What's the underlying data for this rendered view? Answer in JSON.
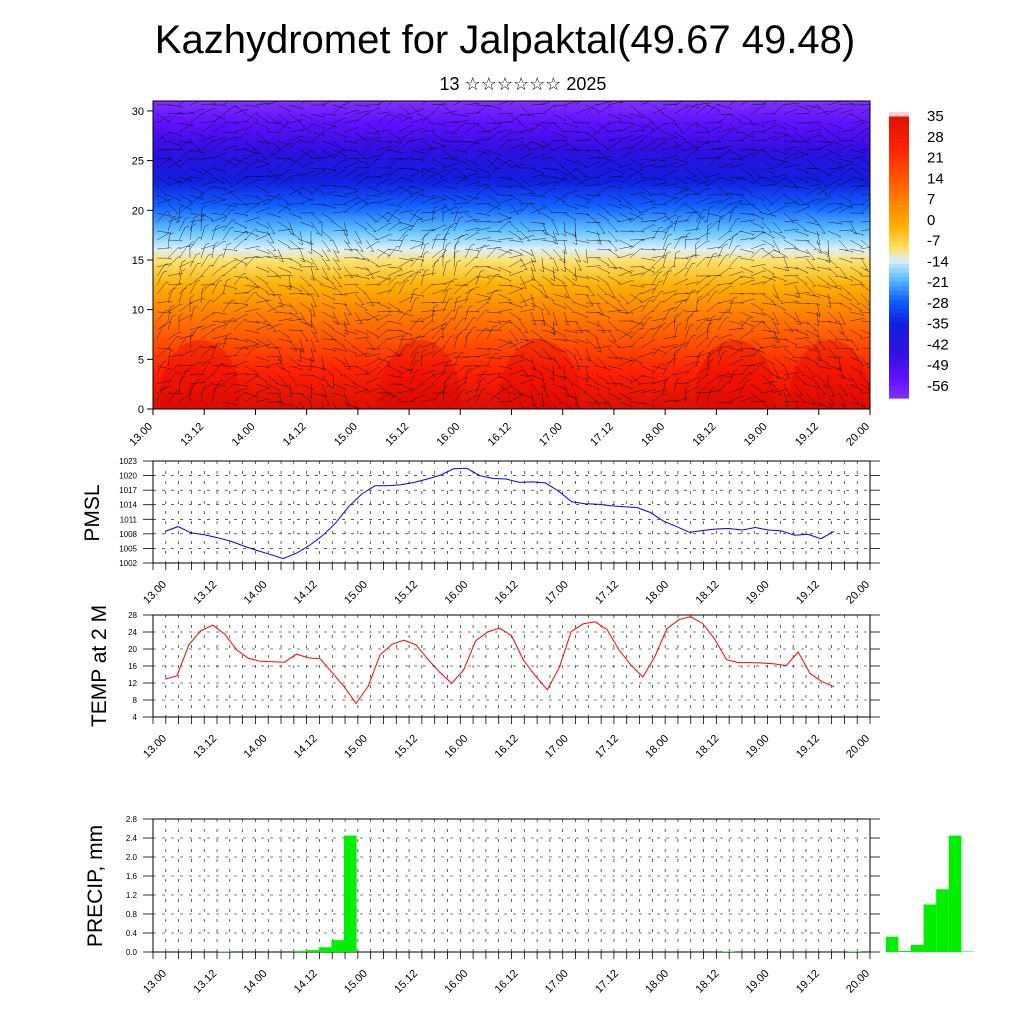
{
  "title": "Kazhydromet for Jalpaktal(49.67 49.48)",
  "subtitle": "13 ☆☆☆☆☆☆ 2025",
  "time_labels": [
    "13.00",
    "13.12",
    "14.00",
    "14.12",
    "15.00",
    "15.12",
    "16.00",
    "16.12",
    "17.00",
    "17.12",
    "18.00",
    "18.12",
    "19.00",
    "19.12",
    "20.00"
  ],
  "colors": {
    "pmsl_line": "#0000ff",
    "temp_line": "#ff0000",
    "precip_bar": "#00ee00",
    "cross_section_cold": "#8000ff",
    "cross_section_warm": "#ff0000"
  },
  "chart_data": [
    {
      "type": "heatmap",
      "title": "Kazhydromet for Jalpaktal(49.67 49.48)",
      "subtitle": "13 ☆☆☆☆☆☆ 2025",
      "y_ticks": [
        0,
        5,
        10,
        15,
        20,
        25,
        30
      ],
      "ylim": [
        0,
        31
      ],
      "colorbar_labels": [
        "35",
        "28",
        "21",
        "14",
        "7",
        "0",
        "-7",
        "-14",
        "-21",
        "-28",
        "-35",
        "-42",
        "-49",
        "-56"
      ],
      "overlay": "wind barbs"
    },
    {
      "type": "line",
      "ylabel": "PMSL",
      "ylim": [
        1002,
        1023
      ],
      "y_ticks": [
        "1002",
        "1005",
        "1008",
        "1011",
        "1014",
        "1017",
        "1020",
        "1023"
      ],
      "values": [
        1008.5,
        1009.5,
        1008.2,
        1007.8,
        1007.2,
        1006.5,
        1005.5,
        1004.6,
        1003.8,
        1002.9,
        1004.0,
        1005.6,
        1007.6,
        1010.2,
        1013.6,
        1016.2,
        1017.9,
        1017.9,
        1018.1,
        1018.6,
        1019.3,
        1020.1,
        1021.4,
        1021.5,
        1020.0,
        1019.4,
        1019.3,
        1018.6,
        1018.7,
        1018.5,
        1016.8,
        1014.6,
        1014.2,
        1014.1,
        1013.8,
        1013.6,
        1013.4,
        1012.4,
        1010.6,
        1009.5,
        1008.3,
        1008.7,
        1009.0,
        1009.1,
        1008.8,
        1009.3,
        1008.8,
        1008.6,
        1007.7,
        1007.9,
        1007.0,
        1008.5
      ]
    },
    {
      "type": "line",
      "ylabel": "TEMP at 2 M",
      "ylim": [
        4,
        28
      ],
      "y_ticks": [
        "4",
        "8",
        "12",
        "16",
        "20",
        "24",
        "28"
      ],
      "values": [
        12.9,
        13.7,
        21.0,
        24.3,
        25.6,
        23.5,
        19.8,
        17.8,
        17.1,
        17.0,
        16.9,
        18.8,
        17.9,
        17.7,
        14.4,
        11.1,
        7.2,
        11.2,
        18.6,
        21.1,
        22.1,
        21.0,
        17.6,
        14.5,
        11.9,
        15.1,
        21.9,
        24.0,
        24.9,
        23.2,
        17.4,
        13.7,
        10.4,
        15.6,
        24.1,
        25.9,
        26.4,
        24.6,
        19.8,
        16.2,
        13.4,
        18.2,
        24.7,
        26.9,
        27.6,
        26.0,
        22.4,
        17.5,
        16.8,
        16.8,
        16.7,
        16.5,
        16.1,
        19.3,
        14.2,
        12.3,
        11.1
      ]
    },
    {
      "type": "bar",
      "ylabel": "PRECIP, mm",
      "ylim": [
        0,
        2.8
      ],
      "y_ticks": [
        "0.0",
        "0.4",
        "0.8",
        "1.2",
        "1.6",
        "2.0",
        "2.4",
        "2.8"
      ],
      "values": [
        0,
        0,
        0,
        0,
        0,
        0.01,
        0,
        0,
        0,
        0,
        0,
        0.02,
        0.04,
        0.1,
        0.25,
        2.45,
        0,
        0,
        0,
        0,
        0,
        0,
        0,
        0,
        0,
        0,
        0,
        0,
        0,
        0,
        0,
        0,
        0,
        0,
        0,
        0,
        0,
        0,
        0,
        0,
        0,
        0,
        0,
        0,
        0,
        0.01,
        0,
        0,
        0,
        0,
        0,
        0,
        0,
        0,
        0,
        0.01,
        0,
        0,
        0.32,
        0.02,
        0.15,
        1.0,
        1.32,
        2.45,
        0.01,
        0,
        0,
        0,
        0,
        0,
        0
      ]
    }
  ]
}
